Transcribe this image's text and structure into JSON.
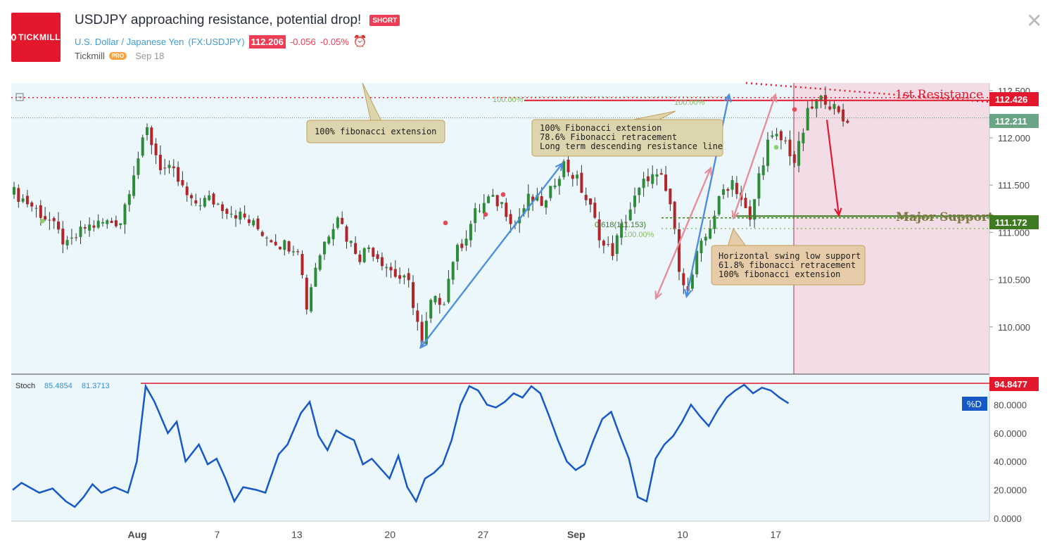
{
  "header": {
    "logo_text": "TICKMILL",
    "title": "USDJPY approaching resistance, potential drop!",
    "badge": "SHORT",
    "symbol_name": "U.S. Dollar / Japanese Yen",
    "symbol_code": "(FX:USDJPY)",
    "price": "112.206",
    "change": "-0.056",
    "change_pct": "-0.05%",
    "author": "Tickmill",
    "author_badge": "PRO",
    "date": "Sep 18"
  },
  "colors": {
    "chart_bg": "#ebf7fb",
    "up_candle": "#2e8b3a",
    "down_candle": "#b0262a",
    "resistance": "#e3182d",
    "support": "#3d7a22",
    "stoch_line": "#1658c6",
    "short_zone": "#f2dce5",
    "fib_text": "#88b86a"
  },
  "chart_data": {
    "type": "candlestick",
    "symbol": "USDJPY",
    "price_axis": {
      "ticks": [
        "110.000",
        "110.500",
        "111.000",
        "111.500",
        "112.000",
        "112.500"
      ],
      "range": [
        109.5,
        112.58
      ]
    },
    "x_axis": {
      "ticks": [
        "Aug",
        "7",
        "13",
        "20",
        "27",
        "Sep",
        "10",
        "17"
      ]
    },
    "price_labels": {
      "resistance": "112.426",
      "current": "112.211",
      "support": "111.172"
    },
    "levels": {
      "resistance": 112.426,
      "current": 112.211,
      "support": 111.172,
      "fib_618": 111.153,
      "fib_100_low": 111.04
    },
    "swing_points": [
      {
        "label": "low",
        "index": 92,
        "price": 109.78
      },
      {
        "label": "high",
        "index": 124,
        "price": 111.73
      },
      {
        "label": "low2",
        "index": 152,
        "price": 110.32
      },
      {
        "label": "high2",
        "index": 170,
        "price": 112.0
      }
    ],
    "close_path": [
      [
        0,
        111.42
      ],
      [
        4,
        111.28
      ],
      [
        8,
        111.12
      ],
      [
        12,
        110.85
      ],
      [
        16,
        111.05
      ],
      [
        20,
        111.1
      ],
      [
        24,
        111.12
      ],
      [
        27,
        111.65
      ],
      [
        30,
        112.08
      ],
      [
        33,
        111.7
      ],
      [
        36,
        111.62
      ],
      [
        40,
        111.3
      ],
      [
        44,
        111.35
      ],
      [
        48,
        111.25
      ],
      [
        52,
        111.15
      ],
      [
        56,
        111.0
      ],
      [
        60,
        110.88
      ],
      [
        64,
        110.85
      ],
      [
        66,
        110.22
      ],
      [
        68,
        110.65
      ],
      [
        70,
        110.9
      ],
      [
        73,
        111.2
      ],
      [
        75,
        110.95
      ],
      [
        78,
        110.75
      ],
      [
        80,
        110.85
      ],
      [
        84,
        110.65
      ],
      [
        86,
        110.55
      ],
      [
        89,
        110.45
      ],
      [
        91,
        110.05
      ],
      [
        92,
        109.8
      ],
      [
        94,
        110.25
      ],
      [
        97,
        110.3
      ],
      [
        99,
        110.72
      ],
      [
        102,
        110.98
      ],
      [
        104,
        111.2
      ],
      [
        107,
        111.35
      ],
      [
        110,
        111.3
      ],
      [
        113,
        111.08
      ],
      [
        116,
        111.35
      ],
      [
        120,
        111.3
      ],
      [
        122,
        111.55
      ],
      [
        124,
        111.72
      ],
      [
        127,
        111.55
      ],
      [
        130,
        111.25
      ],
      [
        133,
        110.85
      ],
      [
        135,
        110.8
      ],
      [
        137,
        111.05
      ],
      [
        140,
        111.35
      ],
      [
        143,
        111.6
      ],
      [
        146,
        111.55
      ],
      [
        148,
        111.3
      ],
      [
        150,
        110.65
      ],
      [
        152,
        110.35
      ],
      [
        154,
        110.75
      ],
      [
        156,
        110.95
      ],
      [
        158,
        111.2
      ],
      [
        160,
        111.45
      ],
      [
        162,
        111.55
      ],
      [
        164,
        111.35
      ],
      [
        166,
        111.1
      ],
      [
        168,
        111.6
      ],
      [
        170,
        111.95
      ],
      [
        172,
        112.0
      ],
      [
        174,
        111.95
      ],
      [
        176,
        111.75
      ],
      [
        177,
        111.9
      ],
      [
        179,
        112.25
      ],
      [
        181,
        112.38
      ],
      [
        183,
        112.42
      ],
      [
        185,
        112.3
      ],
      [
        187,
        112.18
      ],
      [
        188,
        112.21
      ]
    ],
    "stochastic": {
      "label": "Stoch",
      "k": "85.4854",
      "d": "81.3713",
      "level_label": "94.8477",
      "d_tag": "%D",
      "ticks": [
        "0.0000",
        "20.0000",
        "40.0000",
        "60.0000",
        "80.0000"
      ],
      "range": [
        0,
        100
      ],
      "values": [
        [
          0,
          20
        ],
        [
          2,
          25
        ],
        [
          6,
          18
        ],
        [
          9,
          21
        ],
        [
          12,
          12
        ],
        [
          14,
          8
        ],
        [
          16,
          15
        ],
        [
          18,
          24
        ],
        [
          20,
          18
        ],
        [
          23,
          22
        ],
        [
          26,
          18
        ],
        [
          28,
          40
        ],
        [
          30,
          93
        ],
        [
          32,
          82
        ],
        [
          35,
          60
        ],
        [
          37,
          68
        ],
        [
          39,
          40
        ],
        [
          42,
          52
        ],
        [
          44,
          38
        ],
        [
          46,
          42
        ],
        [
          48,
          28
        ],
        [
          50,
          12
        ],
        [
          52,
          22
        ],
        [
          55,
          20
        ],
        [
          57,
          18
        ],
        [
          60,
          45
        ],
        [
          62,
          52
        ],
        [
          65,
          74
        ],
        [
          67,
          82
        ],
        [
          69,
          58
        ],
        [
          71,
          48
        ],
        [
          73,
          62
        ],
        [
          75,
          58
        ],
        [
          77,
          55
        ],
        [
          79,
          38
        ],
        [
          81,
          42
        ],
        [
          83,
          35
        ],
        [
          85,
          28
        ],
        [
          87,
          44
        ],
        [
          89,
          22
        ],
        [
          91,
          12
        ],
        [
          93,
          28
        ],
        [
          95,
          32
        ],
        [
          97,
          38
        ],
        [
          99,
          55
        ],
        [
          101,
          80
        ],
        [
          103,
          93
        ],
        [
          105,
          90
        ],
        [
          107,
          80
        ],
        [
          109,
          78
        ],
        [
          111,
          82
        ],
        [
          113,
          88
        ],
        [
          115,
          85
        ],
        [
          117,
          93
        ],
        [
          119,
          88
        ],
        [
          121,
          72
        ],
        [
          123,
          55
        ],
        [
          125,
          40
        ],
        [
          127,
          34
        ],
        [
          129,
          38
        ],
        [
          131,
          55
        ],
        [
          133,
          70
        ],
        [
          135,
          75
        ],
        [
          137,
          58
        ],
        [
          139,
          42
        ],
        [
          141,
          15
        ],
        [
          143,
          12
        ],
        [
          145,
          42
        ],
        [
          147,
          52
        ],
        [
          149,
          58
        ],
        [
          151,
          68
        ],
        [
          153,
          80
        ],
        [
          155,
          72
        ],
        [
          157,
          65
        ],
        [
          159,
          76
        ],
        [
          161,
          85
        ],
        [
          163,
          90
        ],
        [
          165,
          94
        ],
        [
          167,
          88
        ],
        [
          169,
          92
        ],
        [
          171,
          90
        ],
        [
          173,
          85
        ],
        [
          175,
          81
        ]
      ]
    },
    "annotations": {
      "fib_ext_callout": "100% fibonacci extension",
      "resistance_callout": [
        "100% Fibonacci extension",
        "78.6% Fibonacci retracement",
        "Long term descending resistance line"
      ],
      "support_callout": [
        "Horizontal swing low support",
        "61.8% fibonacci retracement",
        "100% fibonacci extension"
      ],
      "resistance_label": "1st Resistance",
      "support_label": "Major Support",
      "fib_100_top_a": "100.00%",
      "fib_100_top_b": "100.00%",
      "fib_618": "0.618(111.153)",
      "fib_100_bottom": "100.00%"
    }
  }
}
